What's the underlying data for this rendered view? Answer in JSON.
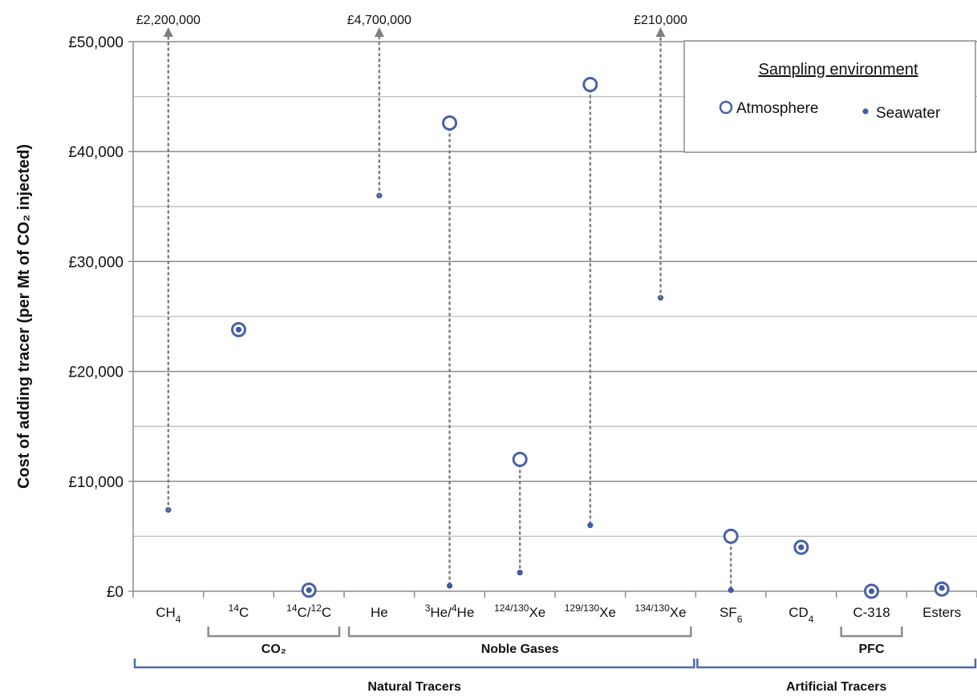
{
  "chart_data": {
    "type": "scatter",
    "ylabel": "Cost of adding tracer (per Mt of CO₂ injected)",
    "ylim": [
      0,
      50000
    ],
    "yticks": [
      {
        "value": 0,
        "label": "£0"
      },
      {
        "value": 10000,
        "label": "£10,000"
      },
      {
        "value": 20000,
        "label": "£20,000"
      },
      {
        "value": 30000,
        "label": "£30,000"
      },
      {
        "value": 40000,
        "label": "£40,000"
      },
      {
        "value": 50000,
        "label": "£50,000"
      }
    ],
    "minor_gridlines": [
      5000,
      15000,
      25000,
      35000,
      45000
    ],
    "categories": [
      {
        "base": "CH",
        "sub": "4",
        "post": ""
      },
      {
        "pre_sup": "14",
        "base": "C",
        "sub": "",
        "post": ""
      },
      {
        "pre_sup": "14",
        "base": "C/",
        "sup2": "12",
        "post": "C"
      },
      {
        "base": "He",
        "sub": "",
        "post": ""
      },
      {
        "pre_sup": "3",
        "base": "He/",
        "sup2": "4",
        "post": "He"
      },
      {
        "pre_sup": "124/130",
        "base": "Xe"
      },
      {
        "pre_sup": "129/130",
        "base": "Xe"
      },
      {
        "pre_sup": "134/130",
        "base": "Xe"
      },
      {
        "base": "SF",
        "sub": "6",
        "post": ""
      },
      {
        "base": "CD",
        "sub": "4",
        "post": ""
      },
      {
        "base": "C-318"
      },
      {
        "base": "Esters"
      }
    ],
    "series": [
      {
        "name": "Atmosphere",
        "color": "#4a60a8",
        "marker": "open-circle",
        "values": [
          null,
          23800,
          100,
          null,
          42600,
          12000,
          46100,
          null,
          5000,
          4000,
          0,
          200
        ]
      },
      {
        "name": "Seawater",
        "color": "#3f5aa6",
        "marker": "dot",
        "values": [
          7400,
          23800,
          100,
          36000,
          500,
          1700,
          6000,
          26700,
          100,
          4000,
          0,
          300
        ]
      }
    ],
    "offscale": [
      {
        "category_index": 0,
        "label": "£2,200,000",
        "from_value": 7400
      },
      {
        "category_index": 3,
        "label": "£4,700,000",
        "from_value": 36000
      },
      {
        "category_index": 7,
        "label": "£210,000",
        "from_value": 26700
      }
    ],
    "connectors": [
      {
        "category_index": 4,
        "from_value": 42600,
        "to_value": 500
      },
      {
        "category_index": 5,
        "from_value": 12000,
        "to_value": 1700
      },
      {
        "category_index": 6,
        "from_value": 46100,
        "to_value": 6000
      },
      {
        "category_index": 8,
        "from_value": 5000,
        "to_value": 100
      }
    ],
    "groups": [
      {
        "label": "CO₂",
        "start": 1,
        "end": 2,
        "level": 1
      },
      {
        "label": "Noble Gases",
        "start": 3,
        "end": 7,
        "level": 1
      },
      {
        "label": "PFC",
        "start": 10,
        "end": 10,
        "level": 1
      },
      {
        "label": "Natural Tracers",
        "start": 0,
        "end": 7,
        "level": 2
      },
      {
        "label": "Artificial Tracers",
        "start": 8,
        "end": 11,
        "level": 2
      }
    ],
    "legend": {
      "title": "Sampling environment",
      "position": "top-right",
      "items": [
        "Atmosphere",
        "Seawater"
      ]
    },
    "grid": true
  }
}
